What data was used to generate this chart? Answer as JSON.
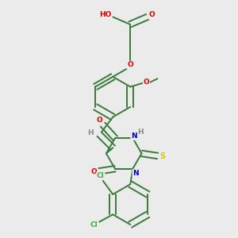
{
  "background_color": "#ebebeb",
  "bond_color": "#3a7a3a",
  "atom_colors": {
    "O": "#dd0000",
    "N": "#0000cc",
    "S": "#cccc00",
    "Cl": "#44aa44",
    "H": "#888888",
    "C": "#3a7a3a"
  },
  "figsize": [
    3.0,
    3.0
  ],
  "dpi": 100
}
